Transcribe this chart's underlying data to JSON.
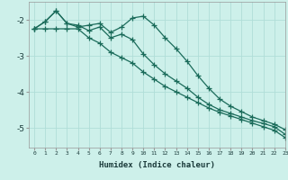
{
  "xlabel": "Humidex (Indice chaleur)",
  "bg_color": "#cdf0ea",
  "grid_color": "#b0ddd8",
  "line_color": "#1a6b5a",
  "xlim": [
    -0.5,
    23
  ],
  "ylim": [
    -5.55,
    -1.5
  ],
  "yticks": [
    -5,
    -4,
    -3,
    -2
  ],
  "xticks": [
    0,
    1,
    2,
    3,
    4,
    5,
    6,
    7,
    8,
    9,
    10,
    11,
    12,
    13,
    14,
    15,
    16,
    17,
    18,
    19,
    20,
    21,
    22,
    23
  ],
  "line1_x": [
    0,
    1,
    2,
    3,
    4,
    5,
    6,
    7,
    8,
    9,
    10,
    11,
    12,
    13,
    14,
    15,
    16,
    17,
    18,
    19,
    20,
    21,
    22,
    23
  ],
  "line1_y": [
    -2.25,
    -2.05,
    -1.75,
    -2.1,
    -2.2,
    -2.15,
    -2.1,
    -2.35,
    -2.2,
    -1.95,
    -1.9,
    -2.15,
    -2.5,
    -2.8,
    -3.15,
    -3.55,
    -3.9,
    -4.2,
    -4.4,
    -4.55,
    -4.7,
    -4.8,
    -4.9,
    -5.05
  ],
  "line2_x": [
    0,
    1,
    2,
    3,
    4,
    5,
    6,
    7,
    8,
    9,
    10,
    11,
    12,
    13,
    14,
    15,
    16,
    17,
    18,
    19,
    20,
    21,
    22,
    23
  ],
  "line2_y": [
    -2.25,
    -2.05,
    -1.75,
    -2.1,
    -2.15,
    -2.3,
    -2.2,
    -2.5,
    -2.4,
    -2.55,
    -2.95,
    -3.25,
    -3.5,
    -3.7,
    -3.9,
    -4.15,
    -4.35,
    -4.5,
    -4.6,
    -4.7,
    -4.8,
    -4.88,
    -4.97,
    -5.18
  ],
  "line3_x": [
    0,
    1,
    2,
    3,
    4,
    5,
    6,
    7,
    8,
    9,
    10,
    11,
    12,
    13,
    14,
    15,
    16,
    17,
    18,
    19,
    20,
    21,
    22,
    23
  ],
  "line3_y": [
    -2.25,
    -2.25,
    -2.25,
    -2.25,
    -2.25,
    -2.5,
    -2.65,
    -2.9,
    -3.05,
    -3.2,
    -3.45,
    -3.65,
    -3.85,
    -4.0,
    -4.15,
    -4.3,
    -4.45,
    -4.57,
    -4.67,
    -4.77,
    -4.87,
    -4.97,
    -5.07,
    -5.27
  ]
}
